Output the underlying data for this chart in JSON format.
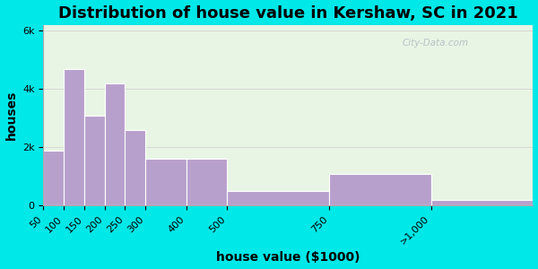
{
  "title": "Distribution of house value in Kershaw, SC in 2021",
  "xlabel": "house value ($1000)",
  "ylabel": "houses",
  "bin_edges": [
    50,
    100,
    150,
    200,
    250,
    300,
    400,
    500,
    750,
    1000,
    1250
  ],
  "bin_labels": [
    "50",
    "100",
    "150",
    "200",
    "250",
    "300",
    "400",
    "500",
    "750",
    ">1,000"
  ],
  "values": [
    1900,
    4700,
    3100,
    4200,
    2600,
    1600,
    1600,
    500,
    1100,
    200
  ],
  "bar_color": "#b8a0cc",
  "bar_edge_color": "#ffffff",
  "outer_bg": "#00e8e8",
  "plot_bg": "#e8f5e5",
  "yticks": [
    0,
    2000,
    4000,
    6000
  ],
  "ytick_labels": [
    "0",
    "2k",
    "4k",
    "6k"
  ],
  "ylim": [
    0,
    6200
  ],
  "xlim": [
    50,
    1250
  ],
  "title_fontsize": 13,
  "axis_fontsize": 10,
  "tick_fontsize": 8,
  "watermark": "City-Data.com"
}
